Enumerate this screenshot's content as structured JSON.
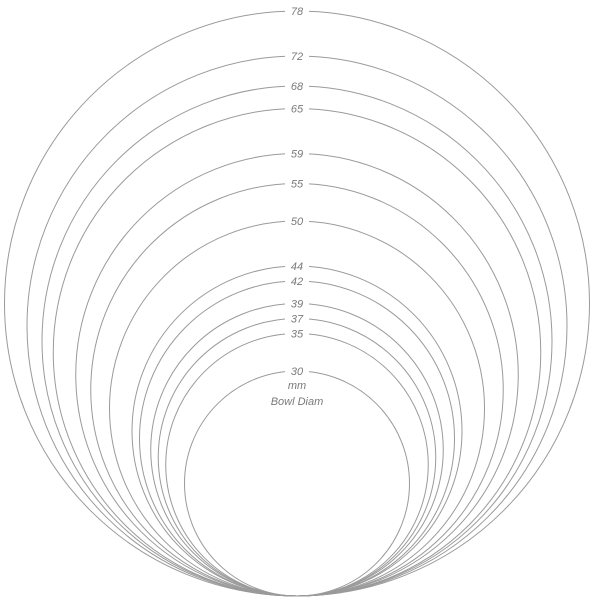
{
  "unit_label": "mm",
  "caption": "Bowl Diam",
  "rings": [
    "78",
    "72",
    "68",
    "65",
    "59",
    "55",
    "50",
    "44",
    "42",
    "39",
    "37",
    "35",
    "30"
  ]
}
